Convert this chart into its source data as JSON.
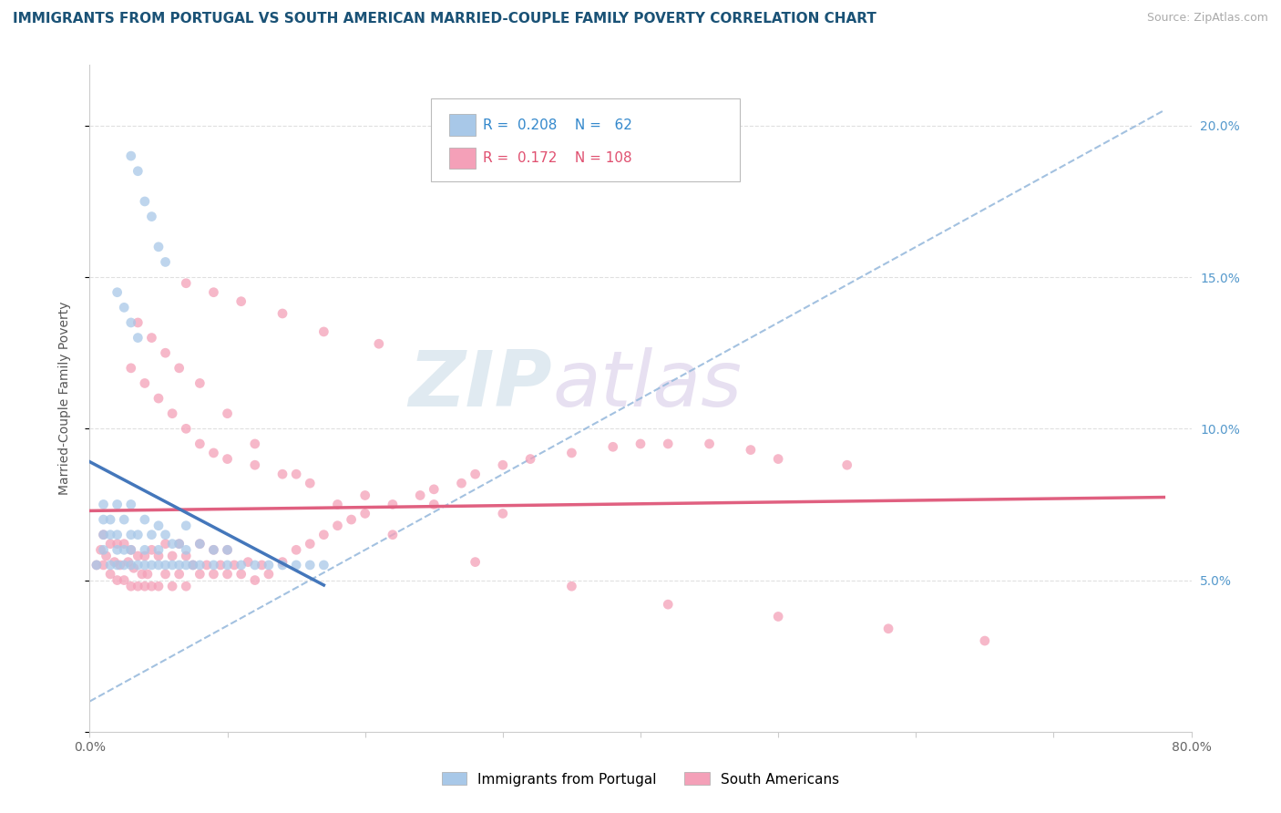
{
  "title": "IMMIGRANTS FROM PORTUGAL VS SOUTH AMERICAN MARRIED-COUPLE FAMILY POVERTY CORRELATION CHART",
  "source": "Source: ZipAtlas.com",
  "ylabel": "Married-Couple Family Poverty",
  "legend_labels": [
    "Immigrants from Portugal",
    "South Americans"
  ],
  "R_portugal": 0.208,
  "N_portugal": 62,
  "R_south_american": 0.172,
  "N_south_american": 108,
  "color_portugal": "#a8c8e8",
  "color_south_american": "#f4a0b8",
  "color_portugal_line": "#4477bb",
  "color_south_american_line": "#e06080",
  "color_trendline_dashed": "#99bbdd",
  "xlim": [
    0.0,
    0.8
  ],
  "ylim": [
    0.0,
    0.22
  ],
  "background_color": "#ffffff",
  "grid_color": "#e0e0e0",
  "title_color": "#1a5276",
  "source_color": "#aaaaaa",
  "watermark_zip_color": "#d8e8f0",
  "watermark_atlas_color": "#e0cce8",
  "portugal_x": [
    0.005,
    0.01,
    0.01,
    0.01,
    0.01,
    0.015,
    0.015,
    0.015,
    0.02,
    0.02,
    0.02,
    0.02,
    0.025,
    0.025,
    0.025,
    0.03,
    0.03,
    0.03,
    0.03,
    0.035,
    0.035,
    0.04,
    0.04,
    0.04,
    0.045,
    0.045,
    0.05,
    0.05,
    0.05,
    0.055,
    0.055,
    0.06,
    0.06,
    0.065,
    0.065,
    0.07,
    0.07,
    0.07,
    0.075,
    0.08,
    0.08,
    0.09,
    0.09,
    0.1,
    0.1,
    0.11,
    0.12,
    0.13,
    0.14,
    0.15,
    0.16,
    0.17,
    0.04,
    0.045,
    0.05,
    0.055,
    0.03,
    0.035,
    0.02,
    0.025,
    0.03,
    0.035
  ],
  "portugal_y": [
    0.055,
    0.06,
    0.065,
    0.07,
    0.075,
    0.055,
    0.065,
    0.07,
    0.055,
    0.06,
    0.065,
    0.075,
    0.055,
    0.06,
    0.07,
    0.055,
    0.06,
    0.065,
    0.075,
    0.055,
    0.065,
    0.055,
    0.06,
    0.07,
    0.055,
    0.065,
    0.055,
    0.06,
    0.068,
    0.055,
    0.065,
    0.055,
    0.062,
    0.055,
    0.062,
    0.055,
    0.06,
    0.068,
    0.055,
    0.055,
    0.062,
    0.055,
    0.06,
    0.055,
    0.06,
    0.055,
    0.055,
    0.055,
    0.055,
    0.055,
    0.055,
    0.055,
    0.175,
    0.17,
    0.16,
    0.155,
    0.19,
    0.185,
    0.145,
    0.14,
    0.135,
    0.13
  ],
  "sa_x": [
    0.005,
    0.008,
    0.01,
    0.01,
    0.012,
    0.015,
    0.015,
    0.018,
    0.02,
    0.02,
    0.022,
    0.025,
    0.025,
    0.028,
    0.03,
    0.03,
    0.032,
    0.035,
    0.035,
    0.038,
    0.04,
    0.04,
    0.042,
    0.045,
    0.045,
    0.05,
    0.05,
    0.055,
    0.055,
    0.06,
    0.06,
    0.065,
    0.065,
    0.07,
    0.07,
    0.075,
    0.08,
    0.08,
    0.085,
    0.09,
    0.09,
    0.095,
    0.1,
    0.1,
    0.105,
    0.11,
    0.115,
    0.12,
    0.125,
    0.13,
    0.14,
    0.15,
    0.16,
    0.17,
    0.18,
    0.19,
    0.2,
    0.22,
    0.24,
    0.25,
    0.27,
    0.28,
    0.3,
    0.32,
    0.35,
    0.38,
    0.4,
    0.42,
    0.45,
    0.48,
    0.5,
    0.55,
    0.03,
    0.04,
    0.05,
    0.06,
    0.07,
    0.08,
    0.09,
    0.1,
    0.12,
    0.14,
    0.16,
    0.2,
    0.25,
    0.3,
    0.035,
    0.045,
    0.055,
    0.065,
    0.08,
    0.1,
    0.12,
    0.15,
    0.18,
    0.22,
    0.28,
    0.35,
    0.42,
    0.5,
    0.58,
    0.65,
    0.07,
    0.09,
    0.11,
    0.14,
    0.17,
    0.21
  ],
  "sa_y": [
    0.055,
    0.06,
    0.055,
    0.065,
    0.058,
    0.052,
    0.062,
    0.056,
    0.05,
    0.062,
    0.055,
    0.05,
    0.062,
    0.056,
    0.048,
    0.06,
    0.054,
    0.048,
    0.058,
    0.052,
    0.048,
    0.058,
    0.052,
    0.048,
    0.06,
    0.048,
    0.058,
    0.052,
    0.062,
    0.048,
    0.058,
    0.052,
    0.062,
    0.048,
    0.058,
    0.055,
    0.052,
    0.062,
    0.055,
    0.052,
    0.06,
    0.055,
    0.052,
    0.06,
    0.055,
    0.052,
    0.056,
    0.05,
    0.055,
    0.052,
    0.056,
    0.06,
    0.062,
    0.065,
    0.068,
    0.07,
    0.072,
    0.075,
    0.078,
    0.08,
    0.082,
    0.085,
    0.088,
    0.09,
    0.092,
    0.094,
    0.095,
    0.095,
    0.095,
    0.093,
    0.09,
    0.088,
    0.12,
    0.115,
    0.11,
    0.105,
    0.1,
    0.095,
    0.092,
    0.09,
    0.088,
    0.085,
    0.082,
    0.078,
    0.075,
    0.072,
    0.135,
    0.13,
    0.125,
    0.12,
    0.115,
    0.105,
    0.095,
    0.085,
    0.075,
    0.065,
    0.056,
    0.048,
    0.042,
    0.038,
    0.034,
    0.03,
    0.148,
    0.145,
    0.142,
    0.138,
    0.132,
    0.128
  ]
}
